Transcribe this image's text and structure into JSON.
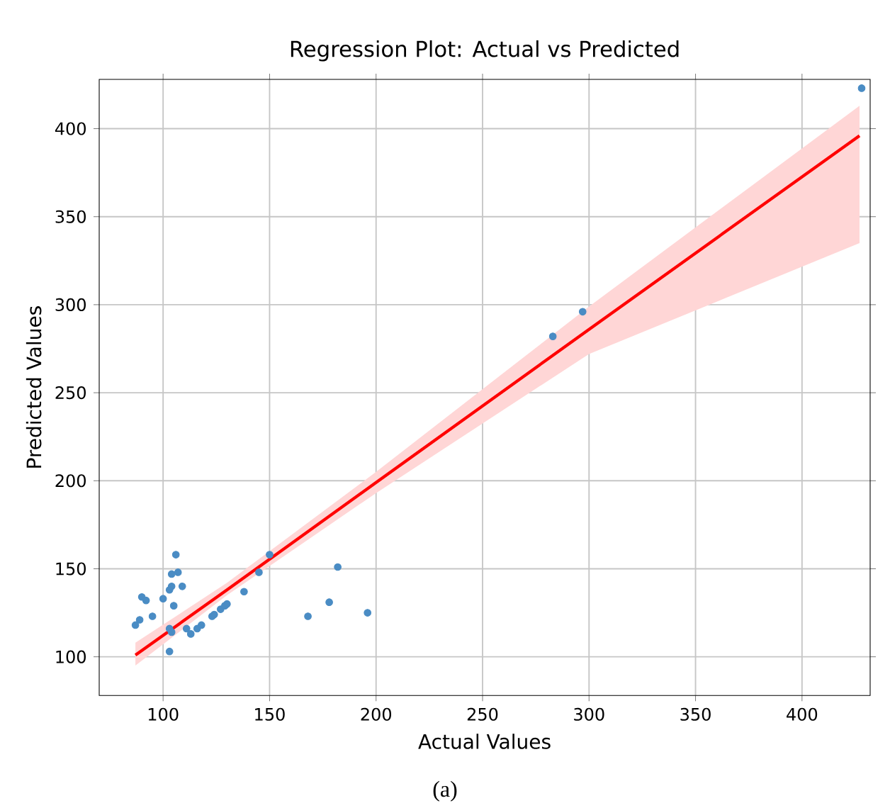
{
  "chart_data": {
    "type": "scatter",
    "title": "Regression Plot: Actual vs Predicted",
    "xlabel": "Actual Values",
    "ylabel": "Predicted Values",
    "annotations": [
      "(a)"
    ],
    "xlim": [
      70,
      432
    ],
    "ylim": [
      78,
      428
    ],
    "xticks": [
      100,
      150,
      200,
      250,
      300,
      350,
      400
    ],
    "yticks": [
      100,
      150,
      200,
      250,
      300,
      350,
      400
    ],
    "grid": true,
    "series": [
      {
        "color": "#4a8cc4",
        "marker": "circle",
        "x": [
          106,
          104,
          107,
          104,
          103,
          109,
          90,
          92,
          100,
          105,
          95,
          89,
          87,
          103,
          104,
          103,
          111,
          113,
          116,
          118,
          123,
          124,
          127,
          129,
          130,
          138,
          145,
          150,
          182,
          178,
          168,
          196,
          297,
          283,
          428
        ],
        "values": [
          158,
          147,
          148,
          140,
          138,
          140,
          134,
          132,
          133,
          129,
          123,
          121,
          118,
          116,
          114,
          103,
          116,
          113,
          116,
          118,
          123,
          124,
          127,
          129,
          130,
          137,
          148,
          158,
          151,
          131,
          123,
          125,
          296,
          282,
          423
        ]
      },
      {
        "type": "line",
        "color": "#ff0000",
        "marker": "none",
        "x": [
          87,
          130,
          200,
          300,
          427
        ],
        "values": [
          101,
          138,
          199,
          286,
          396
        ],
        "lower": [
          95,
          135,
          193,
          272,
          335
        ],
        "upper": [
          108,
          142,
          205,
          299,
          413
        ]
      }
    ]
  }
}
